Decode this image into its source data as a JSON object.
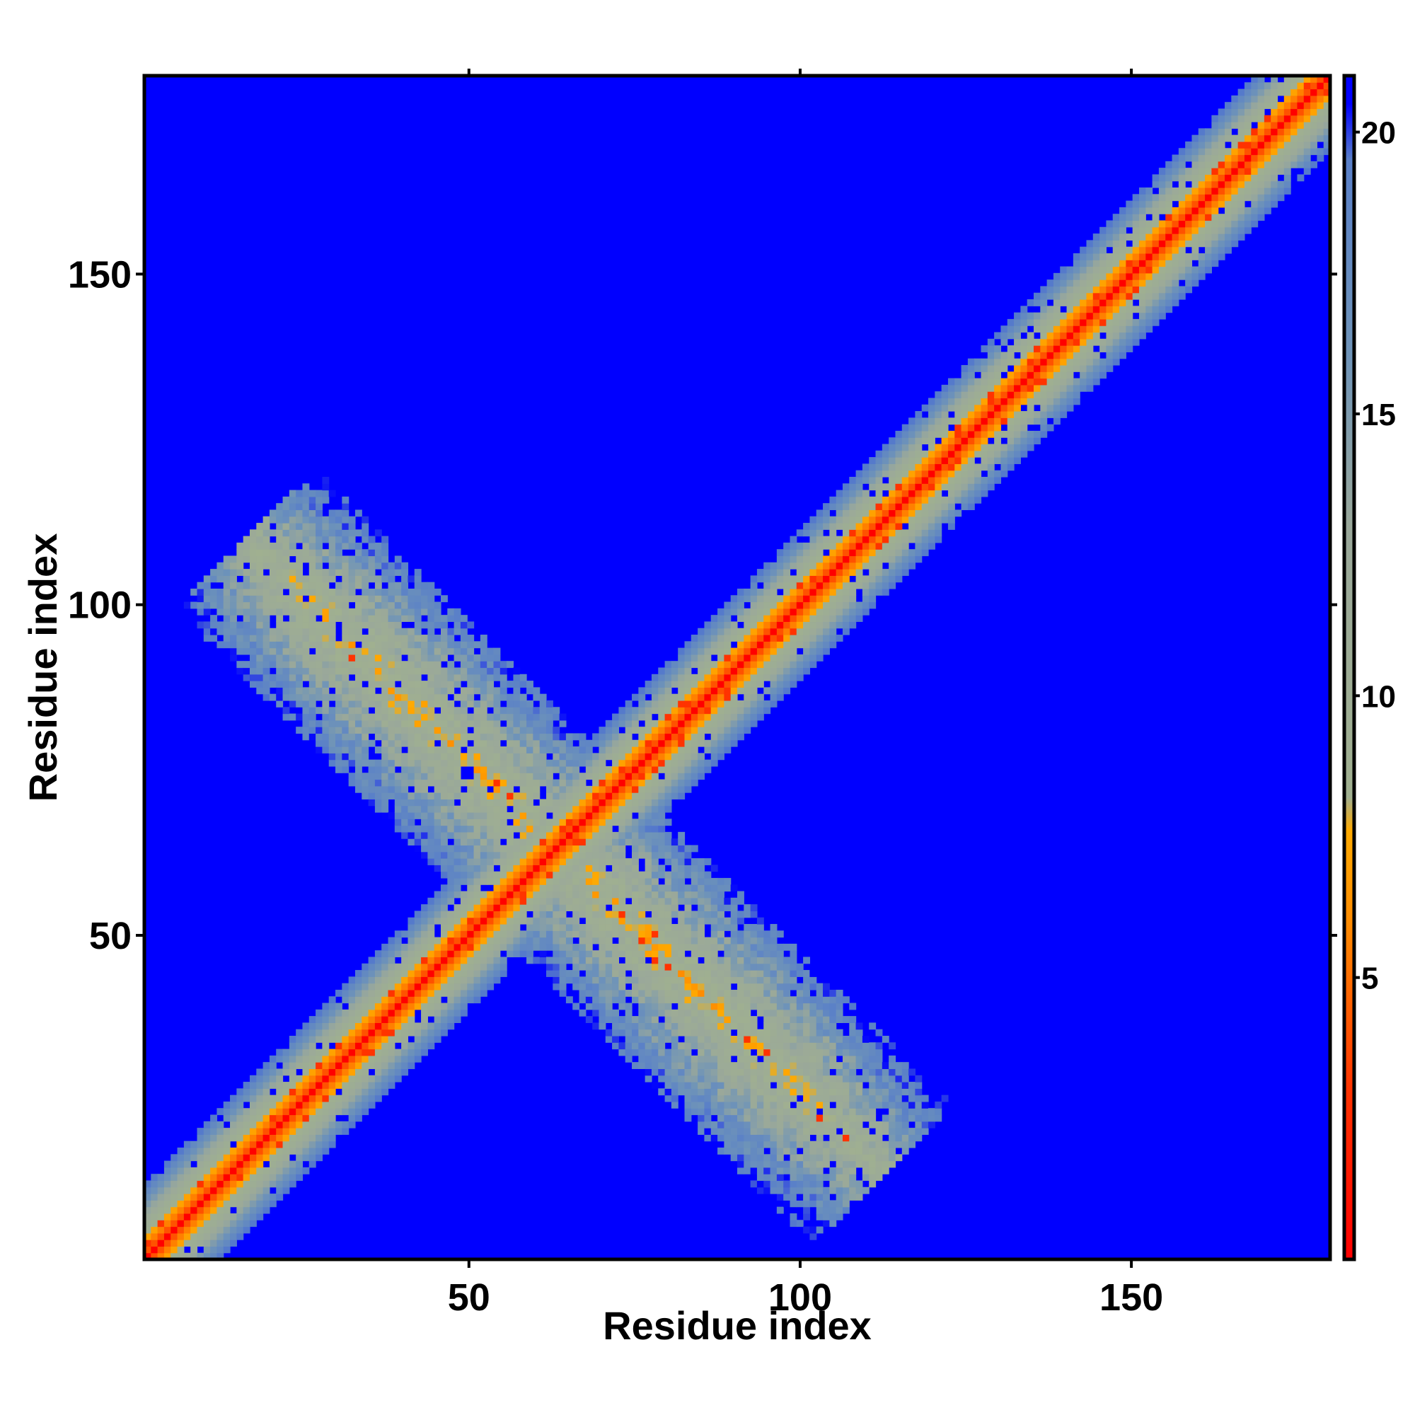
{
  "chart_data": {
    "type": "heatmap",
    "xlabel": "Residue index",
    "ylabel": "Residue index",
    "xlim": [
      1,
      180
    ],
    "ylim": [
      1,
      180
    ],
    "x_ticks": [
      50,
      100,
      150
    ],
    "y_ticks": [
      50,
      100,
      150
    ],
    "colorbar": {
      "range": [
        0,
        21
      ],
      "ticks": [
        5,
        10,
        15,
        20
      ],
      "stops": [
        {
          "value": 0,
          "color": "#ff0000"
        },
        {
          "value": 3,
          "color": "#ff3300"
        },
        {
          "value": 6,
          "color": "#ff8c00"
        },
        {
          "value": 7.6,
          "color": "#ffaa00"
        },
        {
          "value": 8.2,
          "color": "#a0b090"
        },
        {
          "value": 13,
          "color": "#9aa89a"
        },
        {
          "value": 16,
          "color": "#6f94b8"
        },
        {
          "value": 19.5,
          "color": "#5a80c8"
        },
        {
          "value": 20.5,
          "color": "#0000ff"
        }
      ]
    },
    "background_color": "#0000ff",
    "description_values": {
      "diagonal_band_halfwidth_residues": 11,
      "antiparallel_contact_center": [
        63,
        63
      ],
      "antiparallel_arm_extent": [
        [
          10,
          100
        ],
        [
          105,
          5
        ]
      ]
    }
  }
}
